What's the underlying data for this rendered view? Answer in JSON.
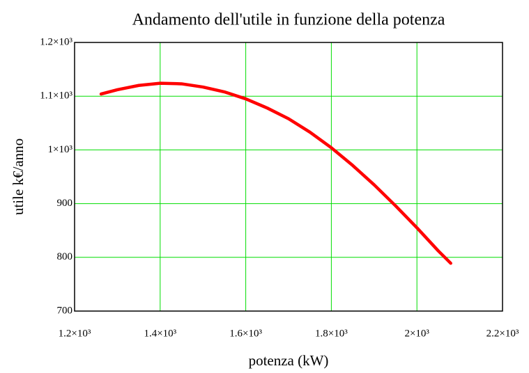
{
  "chart_data": {
    "type": "line",
    "title": "Andamento dell'utile in funzione della potenza",
    "xlabel": "potenza (kW)",
    "ylabel": "utile k€/anno",
    "x": [
      1262,
      1300,
      1350,
      1400,
      1450,
      1500,
      1550,
      1600,
      1650,
      1700,
      1750,
      1800,
      1850,
      1900,
      1950,
      2000,
      2050,
      2079
    ],
    "series": [
      {
        "color": "#ff0000",
        "values": [
          1104,
          1112,
          1120,
          1124,
          1123,
          1117,
          1108,
          1095,
          1078,
          1058,
          1033,
          1004,
          971,
          935,
          896,
          855,
          812,
          789
        ]
      }
    ],
    "xlim": [
      1200,
      2200
    ],
    "xticks": [
      {
        "value": 1200,
        "label": "1.2×10³"
      },
      {
        "value": 1400,
        "label": "1.4×10³"
      },
      {
        "value": 1600,
        "label": "1.6×10³"
      },
      {
        "value": 1800,
        "label": "1.8×10³"
      },
      {
        "value": 2000,
        "label": "2×10³"
      },
      {
        "value": 2200,
        "label": "2.2×10³"
      }
    ],
    "ylim": [
      700,
      1200
    ],
    "yticks": [
      700,
      800,
      900,
      {
        "value": 1000,
        "label": "1×10³"
      },
      {
        "value": 1100,
        "label": "1.1×10³"
      },
      {
        "value": 1200,
        "label": "1.2×10³"
      }
    ],
    "grid": true,
    "grid_color": "#00dd00"
  }
}
